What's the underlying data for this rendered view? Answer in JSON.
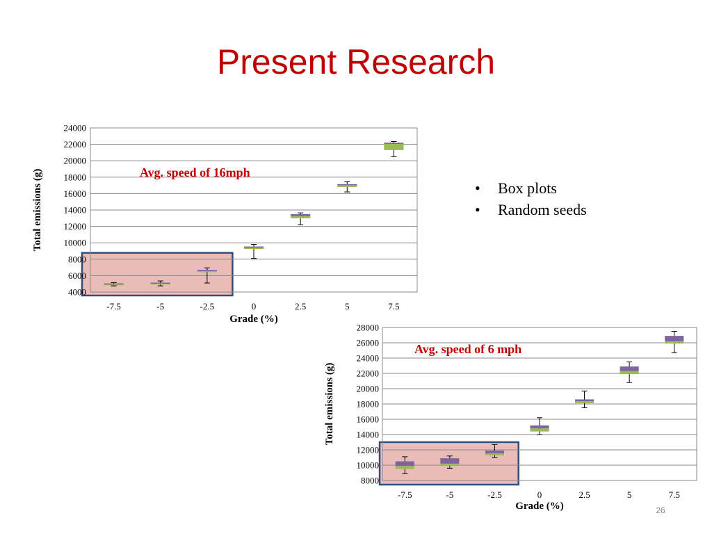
{
  "slide": {
    "title": "Present Research",
    "bullets": [
      "Box plots",
      "Random seeds"
    ],
    "number": "26"
  },
  "colors": {
    "title": "#c00000",
    "annotation": "#c00000",
    "box_lower": "#9bbb59",
    "box_upper": "#8064a2",
    "highlight_fill": "#e6b0ac",
    "highlight_border": "#2e4e7e",
    "gridline": "#888888"
  },
  "chart_data": [
    {
      "type": "box",
      "annotation": "Avg. speed of 16mph",
      "xlabel": "Grade (%)",
      "ylabel": "Total emissions (g)",
      "categories": [
        "-7.5",
        "-5",
        "-2.5",
        "0",
        "2.5",
        "5",
        "7.5"
      ],
      "ylim": [
        4000,
        24000
      ],
      "yticks": [
        "4000",
        "6000",
        "8000",
        "10000",
        "12000",
        "14000",
        "16000",
        "18000",
        "20000",
        "22000",
        "24000"
      ],
      "grid": true,
      "boxes": [
        {
          "min": 4750,
          "q1": 4850,
          "median": 4950,
          "q3": 5050,
          "max": 5150
        },
        {
          "min": 4750,
          "q1": 4950,
          "median": 5050,
          "q3": 5150,
          "max": 5350
        },
        {
          "min": 5100,
          "q1": 6450,
          "median": 6550,
          "q3": 6700,
          "max": 6950
        },
        {
          "min": 8100,
          "q1": 9250,
          "median": 9400,
          "q3": 9550,
          "max": 9800
        },
        {
          "min": 12200,
          "q1": 13000,
          "median": 13250,
          "q3": 13500,
          "max": 13650
        },
        {
          "min": 16200,
          "q1": 16800,
          "median": 17050,
          "q3": 17150,
          "max": 17450
        },
        {
          "min": 20500,
          "q1": 21300,
          "median": 22050,
          "q3": 22200,
          "max": 22350
        }
      ],
      "highlight": {
        "from": "-7.5",
        "to": "-2.5"
      }
    },
    {
      "type": "box",
      "annotation": "Avg. speed of 6 mph",
      "xlabel": "Grade (%)",
      "ylabel": "Total emissions (g)",
      "categories": [
        "-7.5",
        "-5",
        "-2.5",
        "0",
        "2.5",
        "5",
        "7.5"
      ],
      "ylim": [
        8000,
        28000
      ],
      "yticks": [
        "8000",
        "10000",
        "12000",
        "14000",
        "16000",
        "18000",
        "20000",
        "22000",
        "24000",
        "26000",
        "28000"
      ],
      "grid": true,
      "boxes": [
        {
          "min": 8900,
          "q1": 9500,
          "median": 9900,
          "q3": 10500,
          "max": 11100
        },
        {
          "min": 9600,
          "q1": 9900,
          "median": 10200,
          "q3": 10900,
          "max": 11200
        },
        {
          "min": 11000,
          "q1": 11300,
          "median": 11550,
          "q3": 11900,
          "max": 12700
        },
        {
          "min": 14000,
          "q1": 14400,
          "median": 14800,
          "q3": 15200,
          "max": 16200
        },
        {
          "min": 17500,
          "q1": 18100,
          "median": 18350,
          "q3": 18600,
          "max": 19700
        },
        {
          "min": 20800,
          "q1": 21900,
          "median": 22300,
          "q3": 22900,
          "max": 23500
        },
        {
          "min": 24700,
          "q1": 25900,
          "median": 26200,
          "q3": 26900,
          "max": 27500
        }
      ],
      "highlight": {
        "from": "-7.5",
        "to": "-2.5"
      }
    }
  ]
}
